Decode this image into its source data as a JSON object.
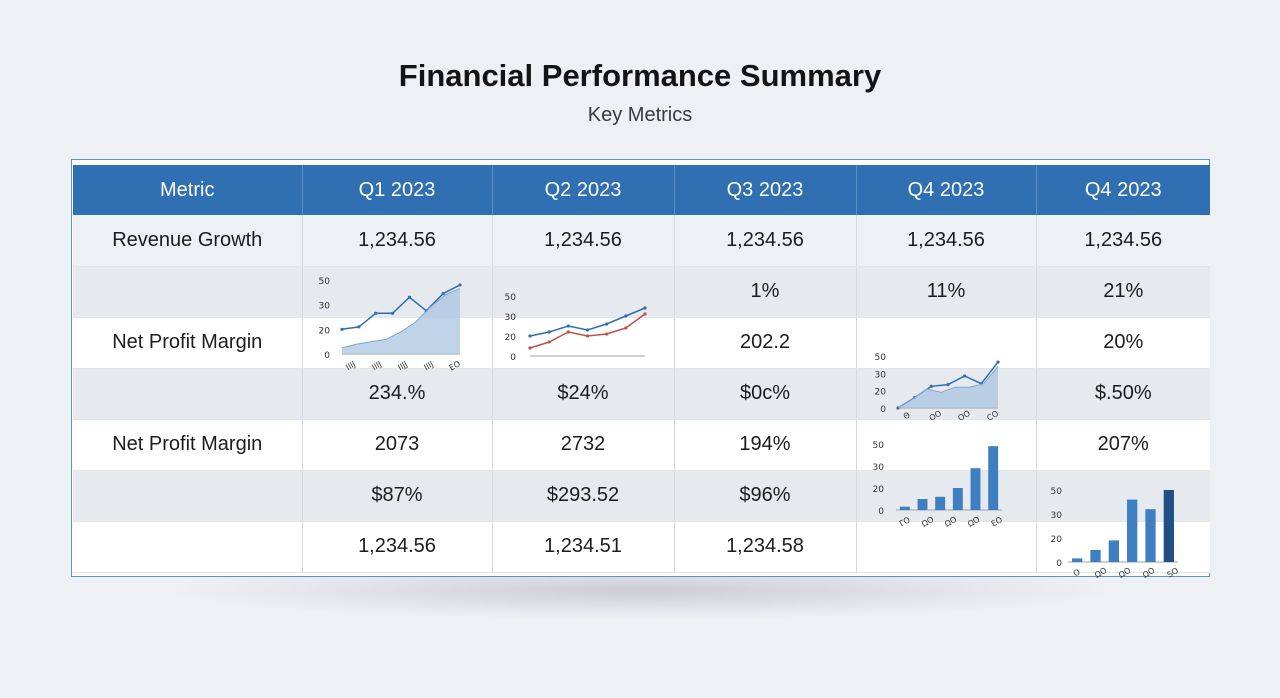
{
  "header": {
    "title": "Financial Performance Summary",
    "subtitle": "Key Metrics"
  },
  "table": {
    "columns": [
      "Metric",
      "Q1 2023",
      "Q2 2023",
      "Q3 2023",
      "Q4 2023",
      "Q4 2023"
    ],
    "rows": [
      [
        "Revenue Growth",
        "1,234.56",
        "1,234.56",
        "1,234.56",
        "1,234.56",
        "1,234.56"
      ],
      [
        "",
        "",
        "",
        "1%",
        "11%",
        "21%"
      ],
      [
        "Net Profit Margin",
        "",
        "",
        "202.2",
        "",
        "20%"
      ],
      [
        "",
        "234.%",
        "$24%",
        "$0c%",
        "",
        "$.50%"
      ],
      [
        "Net Profit Margin",
        "2073",
        "2732",
        "194%",
        "",
        "207%"
      ],
      [
        "",
        "$87%",
        "$293.52",
        "$96%",
        "",
        ""
      ],
      [
        "",
        "1,234.56",
        "1,234.51",
        "1,234.58",
        "",
        ""
      ]
    ]
  },
  "chart_data": [
    {
      "type": "area",
      "yticks": [
        "50",
        "30",
        "20",
        "0"
      ],
      "xticks": [
        "IIIJ",
        "IIIJ",
        "IIJJ",
        "IIIJ",
        "ΕΟ"
      ],
      "ylim": [
        0,
        60
      ],
      "series": [
        {
          "values": [
            20,
            22,
            33,
            33,
            46,
            35,
            49,
            56
          ]
        },
        {
          "values": [
            5,
            8,
            10,
            12,
            18,
            26,
            38,
            48,
            53
          ]
        }
      ]
    },
    {
      "type": "line",
      "yticks": [
        "50",
        "30",
        "20",
        "0"
      ],
      "ylim": [
        0,
        60
      ],
      "series": [
        {
          "values": [
            20,
            24,
            30,
            26,
            32,
            40,
            48
          ]
        },
        {
          "values": [
            8,
            14,
            24,
            20,
            22,
            28,
            42
          ]
        }
      ]
    },
    {
      "type": "area",
      "yticks": [
        "50",
        "30",
        "20",
        "0"
      ],
      "xticks": [
        "Θ",
        "ΟΟ",
        "ΟΟ",
        "CO"
      ],
      "ylim": [
        0,
        60
      ],
      "series": [
        {
          "values": [
            0,
            12,
            25,
            27,
            37,
            28,
            53
          ]
        },
        {
          "values": [
            0,
            10,
            22,
            18,
            24,
            24,
            28,
            48
          ]
        }
      ]
    },
    {
      "type": "bar",
      "yticks": [
        "50",
        "30",
        "20",
        "0"
      ],
      "xticks": [
        "ΓΟ",
        "ΩΟ",
        "ΩΟ",
        "ΩΟ",
        "ΕΟ"
      ],
      "ylim": [
        0,
        60
      ],
      "values": [
        3,
        10,
        12,
        20,
        38,
        58
      ]
    },
    {
      "type": "bar",
      "yticks": [
        "50",
        "30",
        "20",
        "0"
      ],
      "xticks": [
        "Ο",
        "ΩΟ",
        "ΩΟ",
        "ΩΟ",
        "SO"
      ],
      "ylim": [
        0,
        60
      ],
      "values": [
        3,
        10,
        18,
        52,
        44,
        60
      ]
    }
  ]
}
